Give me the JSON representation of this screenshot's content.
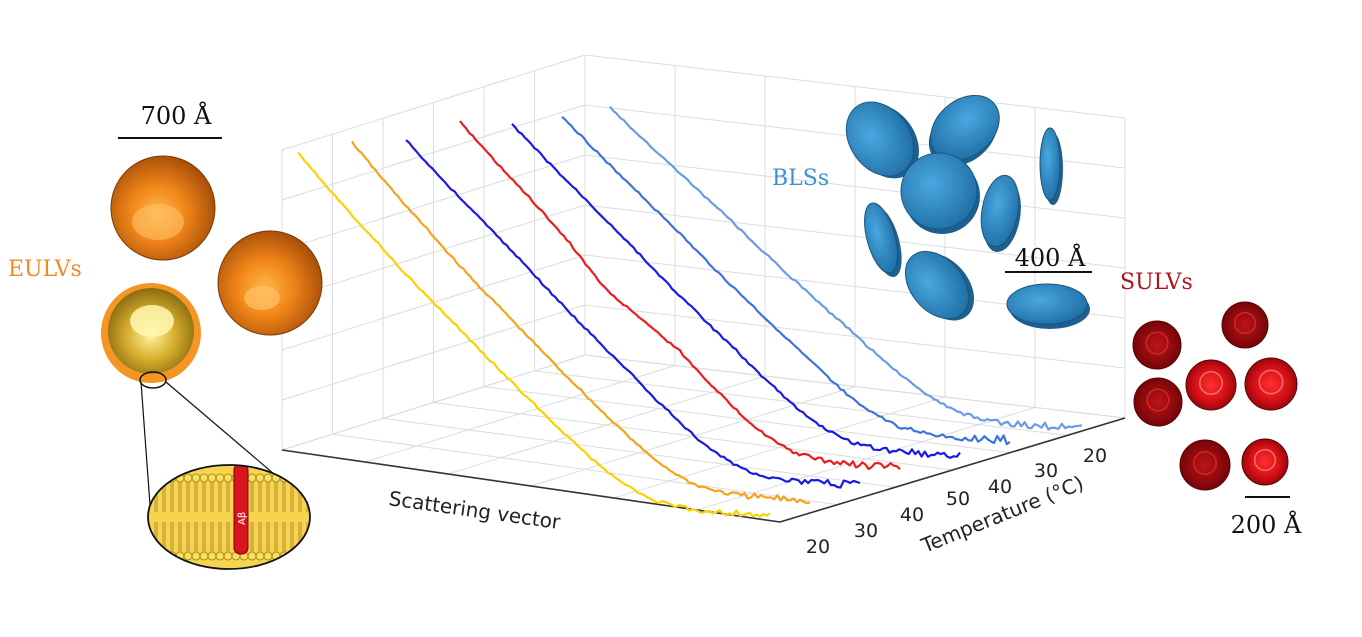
{
  "chart_data": {
    "type": "line",
    "projection": "3d-waterfall",
    "xlabel": "Scattering vector",
    "ylabel": "Temperature (°C)",
    "y_ticks_front": [
      "20",
      "30",
      "40",
      "50"
    ],
    "y_ticks_back": [
      "20",
      "30",
      "40"
    ],
    "grid": true,
    "series": [
      {
        "color": "#ffd000",
        "values": [
          1.0,
          0.95,
          0.9,
          0.84,
          0.78,
          0.7,
          0.6,
          0.47,
          0.3,
          0.14,
          0.06,
          0.03,
          0.02
        ]
      },
      {
        "color": "#f7a21a",
        "values": [
          1.0,
          0.95,
          0.9,
          0.84,
          0.78,
          0.7,
          0.6,
          0.47,
          0.3,
          0.14,
          0.06,
          0.03,
          0.02
        ]
      },
      {
        "color": "#1a1ae6",
        "values": [
          1.0,
          0.96,
          0.92,
          0.87,
          0.8,
          0.72,
          0.62,
          0.48,
          0.3,
          0.14,
          0.06,
          0.03,
          0.02
        ]
      },
      {
        "color": "#ee1c1c",
        "values": [
          1.0,
          0.96,
          0.92,
          0.86,
          0.76,
          0.72,
          0.66,
          0.52,
          0.34,
          0.16,
          0.07,
          0.03,
          0.02
        ]
      },
      {
        "color": "#1a1ae6",
        "values": [
          1.0,
          0.96,
          0.92,
          0.87,
          0.8,
          0.72,
          0.62,
          0.48,
          0.3,
          0.14,
          0.06,
          0.03,
          0.02
        ]
      },
      {
        "color": "#3c74dc",
        "values": [
          1.0,
          0.96,
          0.92,
          0.87,
          0.8,
          0.72,
          0.62,
          0.48,
          0.3,
          0.14,
          0.06,
          0.03,
          0.02
        ]
      },
      {
        "color": "#6b9ae6",
        "values": [
          1.0,
          0.96,
          0.92,
          0.87,
          0.8,
          0.72,
          0.62,
          0.48,
          0.3,
          0.14,
          0.06,
          0.03,
          0.02
        ]
      }
    ]
  },
  "annotations": {
    "eulv_label": "EULVs",
    "eulv_scale": "700 Å",
    "bls_label": "BLSs",
    "bls_scale": "400 Å",
    "sulv_label": "SULVs",
    "sulv_scale": "200 Å",
    "peptide_label": "Aβ"
  },
  "colors": {
    "eulv": "#f08a1e",
    "bls": "#3a93cf",
    "sulv": "#b01218",
    "grid": "#dcdcdc"
  }
}
